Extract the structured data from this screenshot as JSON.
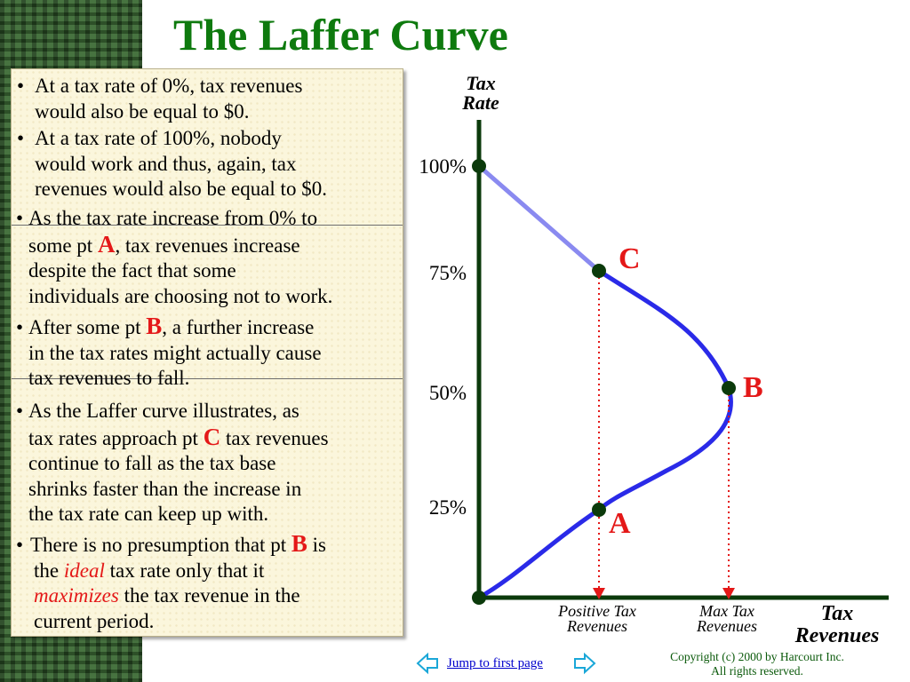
{
  "title": "The Laffer Curve",
  "bullets": {
    "b1": [
      "At a tax rate of 0%, tax revenues",
      "would also be equal to $0."
    ],
    "b2": [
      "At a tax rate of 100%, nobody",
      "would work and thus, again, tax",
      "revenues would also be equal to $0."
    ],
    "b3": {
      "l1": "As the tax rate increase from 0% to",
      "l2a": "some pt ",
      "l2b": "A",
      "l2c": ", tax revenues increase",
      "l3": "despite the fact that some",
      "l4": "individuals are choosing not to work."
    },
    "b4": {
      "l1a": "After some pt ",
      "l1b": "B",
      "l1c": ", a further increase",
      "l2": "in the tax rates might actually cause",
      "l3": "tax revenues to fall."
    },
    "b5": {
      "l1": "As the Laffer curve illustrates, as",
      "l2a": "tax rates approach pt ",
      "l2b": "C",
      "l2c": " tax revenues",
      "l3": "continue to fall as the tax base",
      "l4": "shrinks faster than the increase in",
      "l5": "the tax rate can keep up with."
    },
    "b6": {
      "l1a": "There is no presumption that pt ",
      "l1b": "B",
      "l1c": " is",
      "l2a": "the ",
      "l2b": "ideal",
      "l2c": " tax rate only that it",
      "l3a": "maximizes",
      "l3b": " the tax revenue in the",
      "l4": "current period."
    }
  },
  "diagram": {
    "y_axis_label": [
      "Tax",
      "Rate"
    ],
    "x_axis_label": [
      "Tax",
      "Revenues"
    ],
    "ticks": [
      "100%",
      "75%",
      "50%",
      "25%"
    ],
    "points": {
      "C": "C",
      "B": "B",
      "A": "A"
    },
    "x_markers": {
      "positive": [
        "Positive Tax",
        "Revenues"
      ],
      "max": [
        "Max Tax",
        "Revenues"
      ]
    },
    "colors": {
      "curve": "#2a2ae8",
      "curve_light": "#8a8af0",
      "axis": "#0b3a0b",
      "dot": "#0b3a0b",
      "point_label": "#e41818",
      "drop_line": "#e41818",
      "title": "#0e7a0e"
    }
  },
  "footer": {
    "jump": "Jump to first page",
    "copyright": [
      "Copyright (c) 2000 by Harcourt Inc.",
      "All rights reserved."
    ]
  }
}
